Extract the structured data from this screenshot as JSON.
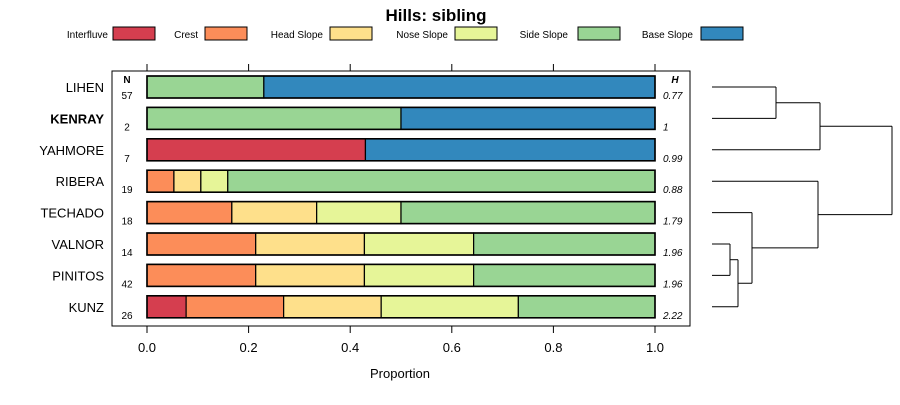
{
  "chart_data": {
    "type": "bar",
    "stacked": true,
    "orientation": "horizontal",
    "title": "Hills: sibling",
    "xlabel": "Proportion",
    "xlim": [
      0,
      1
    ],
    "xticks": [
      "0.0",
      "0.2",
      "0.4",
      "0.6",
      "0.8",
      "1.0"
    ],
    "n_header": "N",
    "h_header": "H",
    "legend": [
      {
        "name": "Interfluve",
        "color": "#D53E4F"
      },
      {
        "name": "Crest",
        "color": "#FC8D59"
      },
      {
        "name": "Head Slope",
        "color": "#FEE08B"
      },
      {
        "name": "Nose Slope",
        "color": "#E6F598"
      },
      {
        "name": "Side Slope",
        "color": "#99D594"
      },
      {
        "name": "Base Slope",
        "color": "#3288BD"
      }
    ],
    "categories": [
      "LIHEN",
      "KENRAY",
      "YAHMORE",
      "RIBERA",
      "TECHADO",
      "VALNOR",
      "PINITOS",
      "KUNZ"
    ],
    "highlight": "KENRAY",
    "n": [
      "57",
      "2",
      "7",
      "19",
      "18",
      "14",
      "42",
      "26"
    ],
    "h": [
      "0.77",
      "1",
      "0.99",
      "0.88",
      "1.79",
      "1.96",
      "1.96",
      "2.22"
    ],
    "series": [
      {
        "name": "Interfluve",
        "values": [
          0,
          0,
          0.43,
          0,
          0,
          0,
          0,
          0.077
        ]
      },
      {
        "name": "Crest",
        "values": [
          0,
          0,
          0,
          0.053,
          0.167,
          0.214,
          0.214,
          0.192
        ]
      },
      {
        "name": "Head Slope",
        "values": [
          0,
          0,
          0,
          0.053,
          0.167,
          0.214,
          0.214,
          0.192
        ]
      },
      {
        "name": "Nose Slope",
        "values": [
          0,
          0,
          0,
          0.053,
          0.166,
          0.215,
          0.215,
          0.27
        ]
      },
      {
        "name": "Side Slope",
        "values": [
          0.23,
          0.5,
          0,
          0.841,
          0.5,
          0.357,
          0.357,
          0.269
        ]
      },
      {
        "name": "Base Slope",
        "values": [
          0.77,
          0.5,
          0.57,
          0,
          0,
          0,
          0,
          0
        ]
      }
    ],
    "dendrogram": {
      "merges": [
        [
          "VALNOR",
          "PINITOS"
        ],
        [
          "VALNOR+PINITOS",
          "KUNZ"
        ],
        [
          "TECHADO",
          "VALNOR+PINITOS+KUNZ"
        ],
        [
          "RIBERA",
          "TECHADO+VALNOR+PINITOS+KUNZ"
        ],
        [
          "LIHEN",
          "KENRAY"
        ],
        [
          "LIHEN+KENRAY",
          "YAHMORE"
        ],
        [
          "LIHEN+KENRAY+YAHMORE",
          "RIBERA+TECHADO+VALNOR+PINITOS+KUNZ"
        ]
      ]
    }
  }
}
